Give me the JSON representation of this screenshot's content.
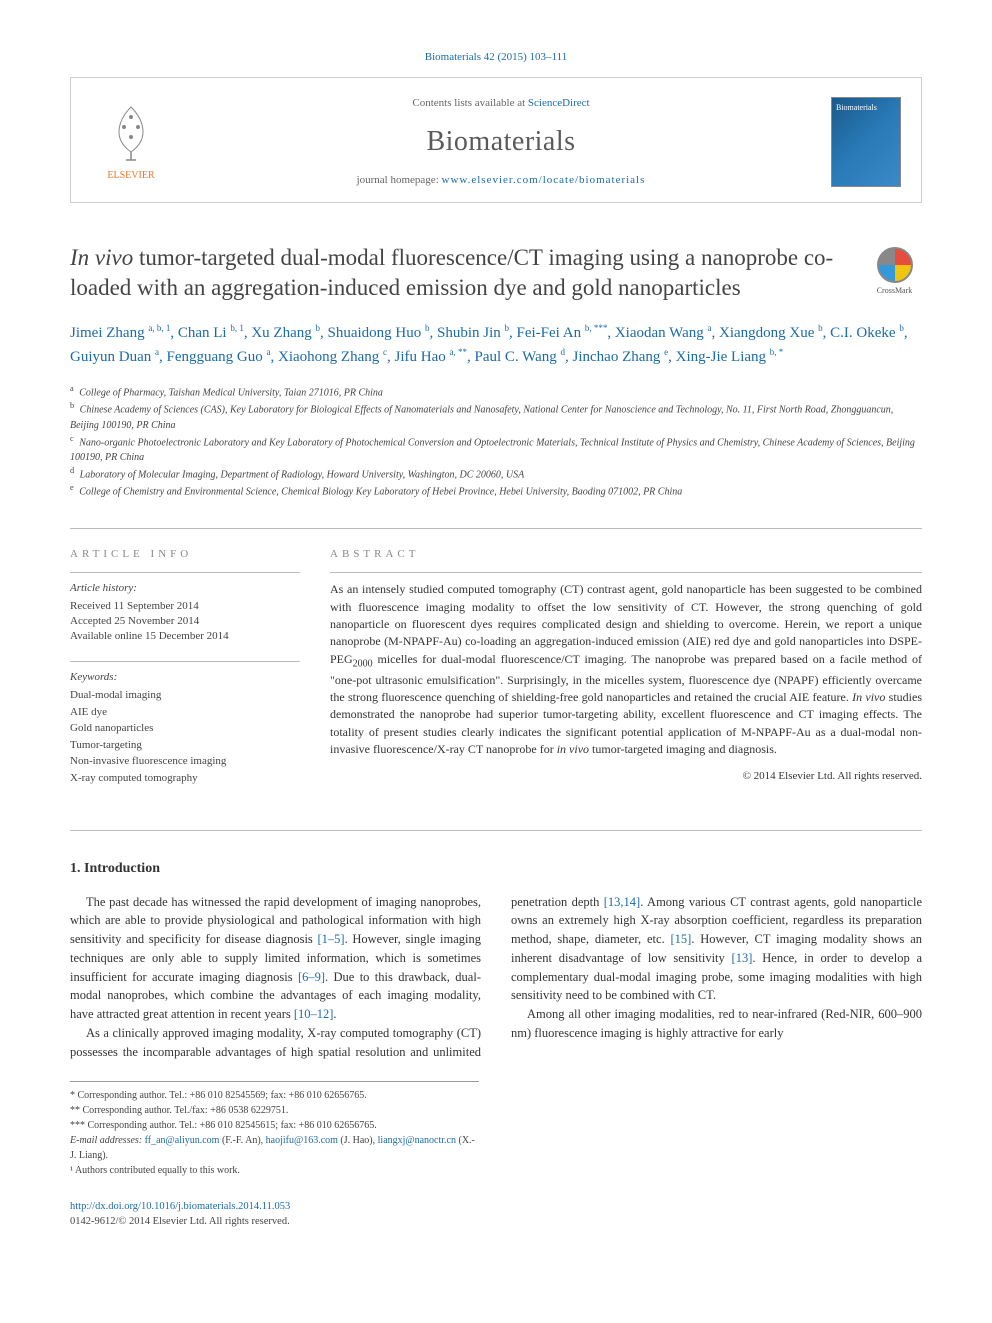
{
  "citation": "Biomaterials 42 (2015) 103–111",
  "header": {
    "contents_prefix": "Contents lists available at ",
    "contents_link": "ScienceDirect",
    "journal_name": "Biomaterials",
    "homepage_prefix": "journal homepage: ",
    "homepage_url": "www.elsevier.com/locate/biomaterials",
    "elsevier_label": "ELSEVIER",
    "cover_label": "Biomaterials"
  },
  "title": {
    "italic_prefix": "In vivo",
    "rest": " tumor-targeted dual-modal fluorescence/CT imaging using a nanoprobe co-loaded with an aggregation-induced emission dye and gold nanoparticles"
  },
  "crossmark_label": "CrossMark",
  "authors_html": "Jimei Zhang <sup>a, b, 1</sup>, Chan Li <sup>b, 1</sup>, Xu Zhang <sup>b</sup>, Shuaidong Huo <sup>b</sup>, Shubin Jin <sup>b</sup>, Fei-Fei An <sup>b, ***</sup>, Xiaodan Wang <sup>a</sup>, Xiangdong Xue <sup>b</sup>, C.I. Okeke <sup>b</sup>, Guiyun Duan <sup>a</sup>, Fengguang Guo <sup>a</sup>, Xiaohong Zhang <sup>c</sup>, Jifu Hao <sup>a, **</sup>, Paul C. Wang <sup>d</sup>, Jinchao Zhang <sup>e</sup>, Xing-Jie Liang <sup>b, *</sup>",
  "affiliations": [
    {
      "sup": "a",
      "text": "College of Pharmacy, Taishan Medical University, Taian 271016, PR China"
    },
    {
      "sup": "b",
      "text": "Chinese Academy of Sciences (CAS), Key Laboratory for Biological Effects of Nanomaterials and Nanosafety, National Center for Nanoscience and Technology, No. 11, First North Road, Zhongguancun, Beijing 100190, PR China"
    },
    {
      "sup": "c",
      "text": "Nano-organic Photoelectronic Laboratory and Key Laboratory of Photochemical Conversion and Optoelectronic Materials, Technical Institute of Physics and Chemistry, Chinese Academy of Sciences, Beijing 100190, PR China"
    },
    {
      "sup": "d",
      "text": "Laboratory of Molecular Imaging, Department of Radiology, Howard University, Washington, DC 20060, USA"
    },
    {
      "sup": "e",
      "text": "College of Chemistry and Environmental Science, Chemical Biology Key Laboratory of Hebei Province, Hebei University, Baoding 071002, PR China"
    }
  ],
  "article_info": {
    "heading": "ARTICLE INFO",
    "history_label": "Article history:",
    "history": [
      "Received 11 September 2014",
      "Accepted 25 November 2014",
      "Available online 15 December 2014"
    ],
    "keywords_label": "Keywords:",
    "keywords": [
      "Dual-modal imaging",
      "AIE dye",
      "Gold nanoparticles",
      "Tumor-targeting",
      "Non-invasive fluorescence imaging",
      "X-ray computed tomography"
    ]
  },
  "abstract": {
    "heading": "ABSTRACT",
    "text_html": "As an intensely studied computed tomography (CT) contrast agent, gold nanoparticle has been suggested to be combined with fluorescence imaging modality to offset the low sensitivity of CT. However, the strong quenching of gold nanoparticle on fluorescent dyes requires complicated design and shielding to overcome. Herein, we report a unique nanoprobe (M-NPAPF-Au) co-loading an aggregation-induced emission (AIE) red dye and gold nanoparticles into DSPE-PEG<sub>2000</sub> micelles for dual-modal fluorescence/CT imaging. The nanoprobe was prepared based on a facile method of \"one-pot ultrasonic emulsification\". Surprisingly, in the micelles system, fluorescence dye (NPAPF) efficiently overcame the strong fluorescence quenching of shielding-free gold nanoparticles and retained the crucial AIE feature. <span class=\"italic\">In vivo</span> studies demonstrated the nanoprobe had superior tumor-targeting ability, excellent fluorescence and CT imaging effects. The totality of present studies clearly indicates the significant potential application of M-NPAPF-Au as a dual-modal non-invasive fluorescence/X-ray CT nanoprobe for <span class=\"italic\">in vivo</span> tumor-targeted imaging and diagnosis.",
    "copyright": "© 2014 Elsevier Ltd. All rights reserved."
  },
  "intro": {
    "heading": "1. Introduction",
    "p1_html": "The past decade has witnessed the rapid development of imaging nanoprobes, which are able to provide physiological and pathological information with high sensitivity and specificity for disease diagnosis <span class=\"ref-link\">[1–5]</span>. However, single imaging techniques are only able to supply limited information, which is sometimes insufficient for accurate imaging diagnosis <span class=\"ref-link\">[6–9]</span>. Due to this drawback, dual-modal nanoprobes, which combine the advantages of each imaging modality, have attracted great attention in recent years <span class=\"ref-link\">[10–12]</span>.",
    "p2_html": "As a clinically approved imaging modality, X-ray computed tomography (CT) possesses the incomparable advantages of high spatial resolution and unlimited penetration depth <span class=\"ref-link\">[13,14]</span>. Among various CT contrast agents, gold nanoparticle owns an extremely high X-ray absorption coefficient, regardless its preparation method, shape, diameter, etc. <span class=\"ref-link\">[15]</span>. However, CT imaging modality shows an inherent disadvantage of low sensitivity <span class=\"ref-link\">[13]</span>. Hence, in order to develop a complementary dual-modal imaging probe, some imaging modalities with high sensitivity need to be combined with CT.",
    "p3_html": "Among all other imaging modalities, red to near-infrared (Red-NIR, 600–900 nm) fluorescence imaging is highly attractive for early"
  },
  "footnotes": {
    "lines": [
      "* Corresponding author. Tel.: +86 010 82545569; fax: +86 010 62656765.",
      "** Corresponding author. Tel./fax: +86 0538 6229751.",
      "*** Corresponding author. Tel.: +86 010 82545615; fax: +86 010 62656765."
    ],
    "email_label": "E-mail addresses: ",
    "emails_html": "<span class=\"email\">ff_an@aliyun.com</span> (F.-F. An), <span class=\"email\">haojifu@163.com</span> (J. Hao), <span class=\"email\">liangxj@nanoctr.cn</span> (X.-J. Liang).",
    "equal": "¹ Authors contributed equally to this work."
  },
  "footer": {
    "doi": "http://dx.doi.org/10.1016/j.biomaterials.2014.11.053",
    "issn_line": "0142-9612/© 2014 Elsevier Ltd. All rights reserved."
  },
  "colors": {
    "link": "#1a6ba8",
    "elsevier_orange": "#e77828",
    "heading_gray": "#888888",
    "text": "#333333"
  }
}
